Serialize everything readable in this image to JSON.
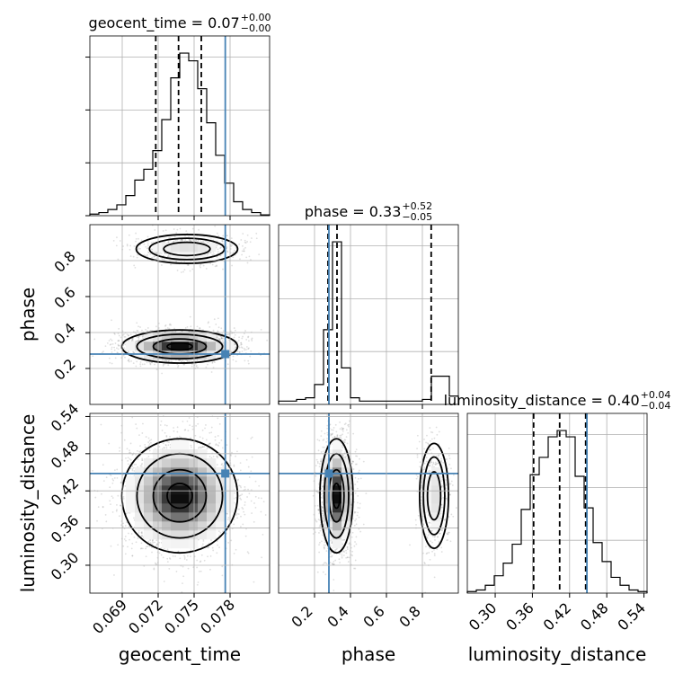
{
  "chart_data": {
    "type": "corner",
    "parameters": [
      "geocent_time",
      "phase",
      "luminosity_distance"
    ],
    "axis_labels": [
      "geocent_time",
      "phase",
      "luminosity_distance"
    ],
    "ranges": [
      [
        0.0663,
        0.0813
      ],
      [
        0.0,
        1.0
      ],
      [
        0.255,
        0.545
      ]
    ],
    "ticks": {
      "geocent_time": [
        0.069,
        0.072,
        0.075,
        0.078
      ],
      "phase": [
        0.2,
        0.4,
        0.6,
        0.8
      ],
      "luminosity_distance": [
        0.3,
        0.36,
        0.42,
        0.48,
        0.54
      ]
    },
    "tick_labels": {
      "geocent_time": [
        "0.069",
        "0.072",
        "0.075",
        "0.078"
      ],
      "phase": [
        "0.2",
        "0.4",
        "0.6",
        "0.8"
      ],
      "luminosity_distance": [
        "0.30",
        "0.36",
        "0.42",
        "0.48",
        "0.54"
      ]
    },
    "titles": [
      {
        "param": "geocent_time",
        "text": "geocent_time = 0.07",
        "plus": "+0.00",
        "minus": "−0.00"
      },
      {
        "param": "phase",
        "text": "phase = 0.33",
        "plus": "+0.52",
        "minus": "−0.05"
      },
      {
        "param": "luminosity_distance",
        "text": "luminosity_distance = 0.40",
        "plus": "+0.04",
        "minus": "−0.04"
      }
    ],
    "quantiles": {
      "geocent_time": [
        0.0718,
        0.0737,
        0.0756
      ],
      "phase": [
        0.275,
        0.325,
        0.849
      ],
      "luminosity_distance": [
        0.362,
        0.404,
        0.446
      ]
    },
    "truths": {
      "geocent_time": 0.0776,
      "phase": 0.28,
      "luminosity_distance": 0.448
    },
    "histograms": {
      "geocent_time": {
        "edges_start": 0.0663,
        "bin_width": 0.00075,
        "counts": [
          0.01,
          0.02,
          0.04,
          0.07,
          0.13,
          0.23,
          0.3,
          0.42,
          0.62,
          0.89,
          1.05,
          1.0,
          0.82,
          0.6,
          0.39,
          0.21,
          0.09,
          0.04,
          0.02,
          0.005
        ]
      },
      "phase": {
        "edges_start": 0.0,
        "bin_width": 0.05,
        "counts": [
          0.02,
          0.02,
          0.03,
          0.04,
          0.12,
          0.45,
          0.98,
          0.22,
          0.04,
          0.02,
          0.02,
          0.02,
          0.02,
          0.02,
          0.02,
          0.02,
          0.03,
          0.17,
          0.17,
          0.05
        ]
      },
      "luminosity_distance": {
        "edges_start": 0.255,
        "bin_width": 0.0145,
        "counts": [
          0.01,
          0.02,
          0.05,
          0.11,
          0.19,
          0.31,
          0.53,
          0.75,
          0.86,
          0.99,
          1.03,
          0.99,
          0.74,
          0.54,
          0.32,
          0.2,
          0.1,
          0.05,
          0.02,
          0.01
        ]
      }
    },
    "correlations": {
      "phase_vs_geocent_time": [
        {
          "weight": 0.78,
          "x_mean": 0.0738,
          "x_sd": 0.0021,
          "y_mean": 0.322,
          "y_sd": 0.04
        },
        {
          "weight": 0.22,
          "x_mean": 0.0744,
          "x_sd": 0.002,
          "y_mean": 0.865,
          "y_sd": 0.038
        }
      ],
      "luminosity_distance_vs_geocent_time": [
        {
          "weight": 1.0,
          "x_mean": 0.0738,
          "x_sd": 0.0021,
          "y_mean": 0.412,
          "y_sd": 0.04
        }
      ],
      "luminosity_distance_vs_phase": [
        {
          "weight": 0.78,
          "x_mean": 0.322,
          "x_sd": 0.04,
          "y_mean": 0.412,
          "y_sd": 0.04
        },
        {
          "weight": 0.22,
          "x_mean": 0.865,
          "x_sd": 0.038,
          "y_mean": 0.412,
          "y_sd": 0.04
        }
      ]
    },
    "grid": true,
    "colors": {
      "hist": "#000000",
      "truth": "#4682b4",
      "grid": "#b0b0b0",
      "scatter": "#808080"
    }
  }
}
